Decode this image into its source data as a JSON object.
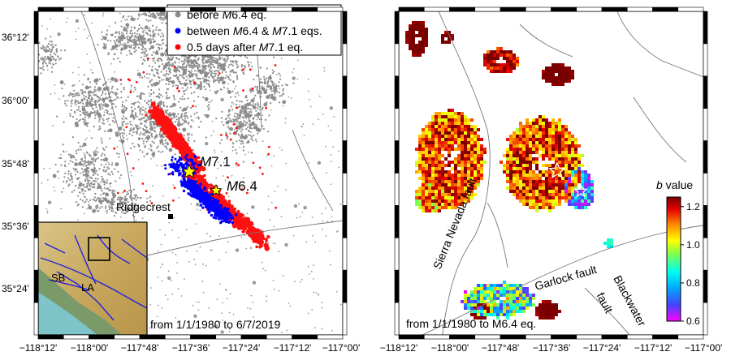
{
  "left_map": {
    "lat_labels": [
      "36°12'",
      "36°00'",
      "35°48'",
      "35°36'",
      "35°24'"
    ],
    "lon_labels": [
      "−118°12'",
      "−118°00'",
      "−117°48'",
      "−117°36'",
      "−117°24'",
      "−117°12'",
      "−117°00'"
    ],
    "legend": [
      {
        "pre": "before ",
        "ital": "M",
        "post": "6.4 eq.",
        "color": "#8c8c8c"
      },
      {
        "pre": "between ",
        "ital": "M",
        "mid": "6.4 & ",
        "ital2": "M",
        "post": "7.1 eqs.",
        "color": "#0000ff"
      },
      {
        "pre": "0.5 days after ",
        "ital": "M",
        "post": "7.1 eq.",
        "color": "#ff0000"
      }
    ],
    "mainshock_1": {
      "ital": "M",
      "rest": "7.1"
    },
    "mainshock_2": {
      "ital": "M",
      "rest": "6.4"
    },
    "town": "Ridgecrest",
    "inset_labels": [
      "SB",
      "LA"
    ],
    "period": "from 1/1/1980 to 6/7/2019"
  },
  "right_map": {
    "lon_labels": [
      "−118°12'",
      "−118°00'",
      "−117°48'",
      "−117°36'",
      "−117°24'",
      "−117°12'",
      "−117°00'"
    ],
    "fault_labels": [
      "Sierra Nevada fault",
      "Garlock fault",
      "Blackwater",
      "fault"
    ],
    "period": "from 1/1/1980 to M6.4 eq.",
    "colorbar": {
      "title_ital": "b",
      "title_rest": " value",
      "ticks": [
        "1.2",
        "1.0",
        "0.8",
        "0.6"
      ],
      "min": 0.6,
      "max": 1.25
    }
  }
}
